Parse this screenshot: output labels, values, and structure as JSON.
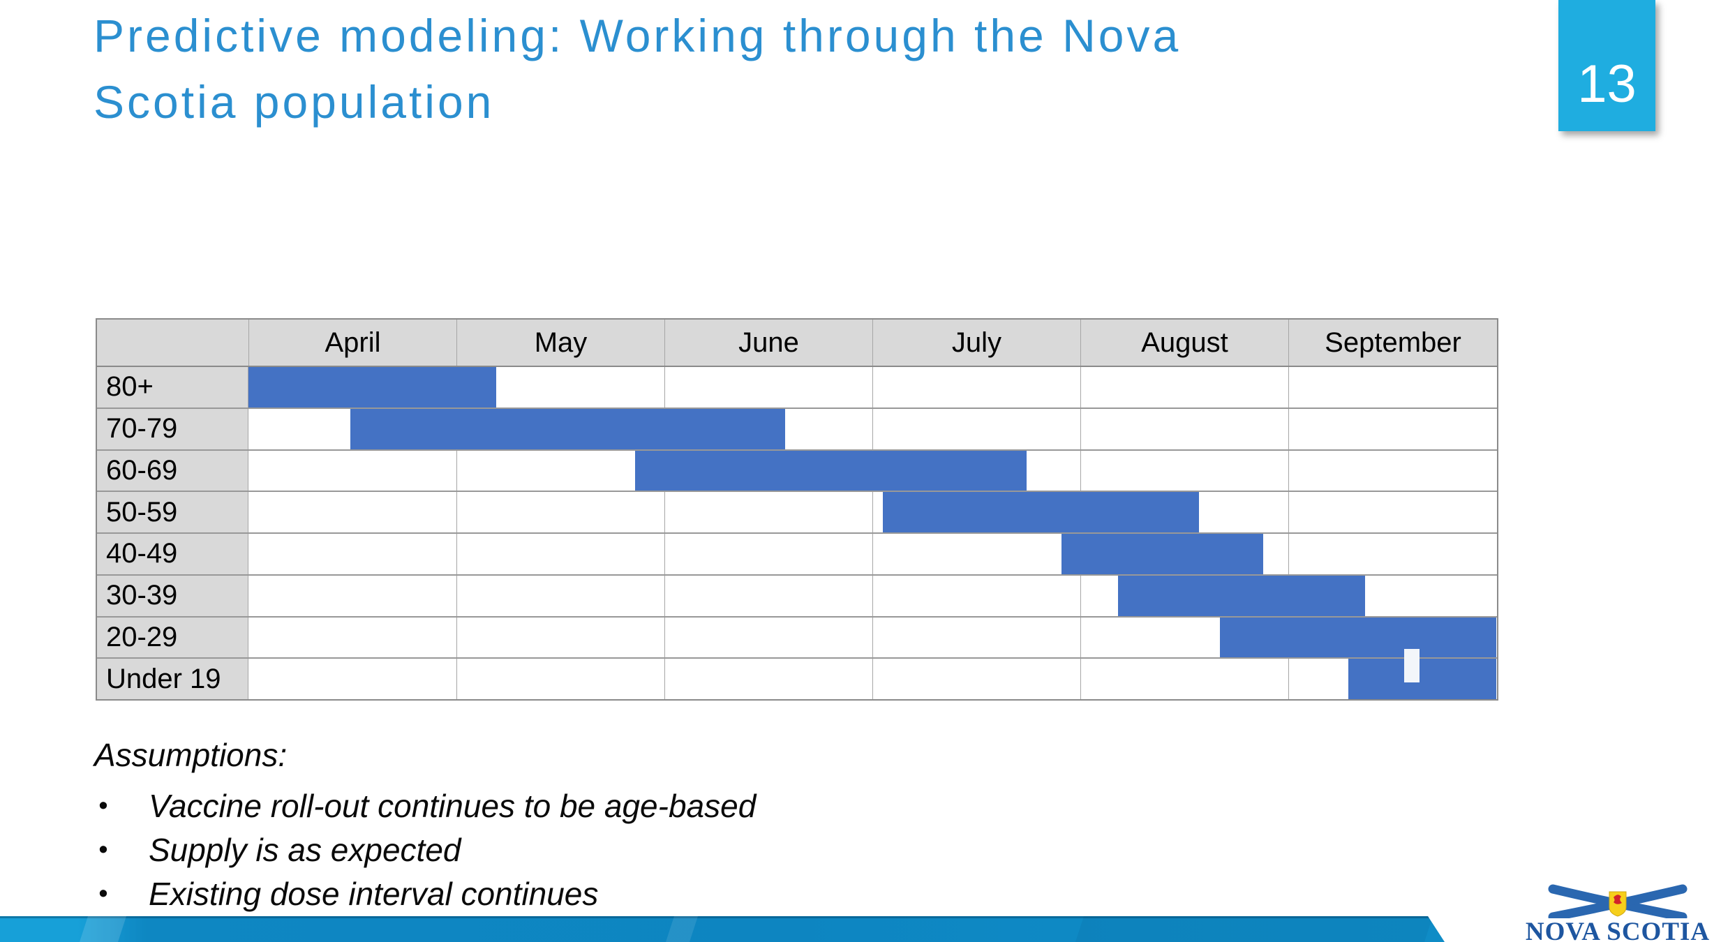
{
  "slide": {
    "title_line1": "Predictive modeling: Working through the Nova",
    "title_line2": "Scotia population",
    "page_number": "13"
  },
  "chart_data": {
    "type": "bar",
    "variant": "gantt-timeline",
    "title": "Predictive modeling: Working through the Nova Scotia population",
    "months": [
      "April",
      "May",
      "June",
      "July",
      "August",
      "September"
    ],
    "x_units": "months, April = 0 through end of September = 6",
    "bar_color": "#4472c4",
    "rows": [
      {
        "label": "80+",
        "start": 0.0,
        "end": 1.19
      },
      {
        "label": "70-79",
        "start": 0.49,
        "end": 2.58
      },
      {
        "label": "60-69",
        "start": 1.86,
        "end": 3.74
      },
      {
        "label": "50-59",
        "start": 3.05,
        "end": 4.57
      },
      {
        "label": "40-49",
        "start": 3.91,
        "end": 4.88
      },
      {
        "label": "30-39",
        "start": 4.18,
        "end": 5.37
      },
      {
        "label": "20-29",
        "start": 4.67,
        "end": 6.0
      },
      {
        "label": "Under 19",
        "start": 5.29,
        "end": 6.0
      }
    ],
    "legend": "none",
    "grid": "on"
  },
  "assumptions": {
    "heading": "Assumptions:",
    "bullet_glyph": "•",
    "bullets": [
      "Vaccine roll-out continues to be age-based",
      "Supply is as expected",
      "Existing dose interval continues"
    ]
  },
  "footer": {
    "logo_text": "NOVA SCOTIA"
  },
  "colors": {
    "title_blue": "#2b8fd0",
    "page_box_cyan": "#1fade0",
    "bar_blue": "#4472c4",
    "header_gray": "#d9d9d9",
    "ribbon_blue": "#0d85c1",
    "logo_blue": "#1e56a0"
  }
}
